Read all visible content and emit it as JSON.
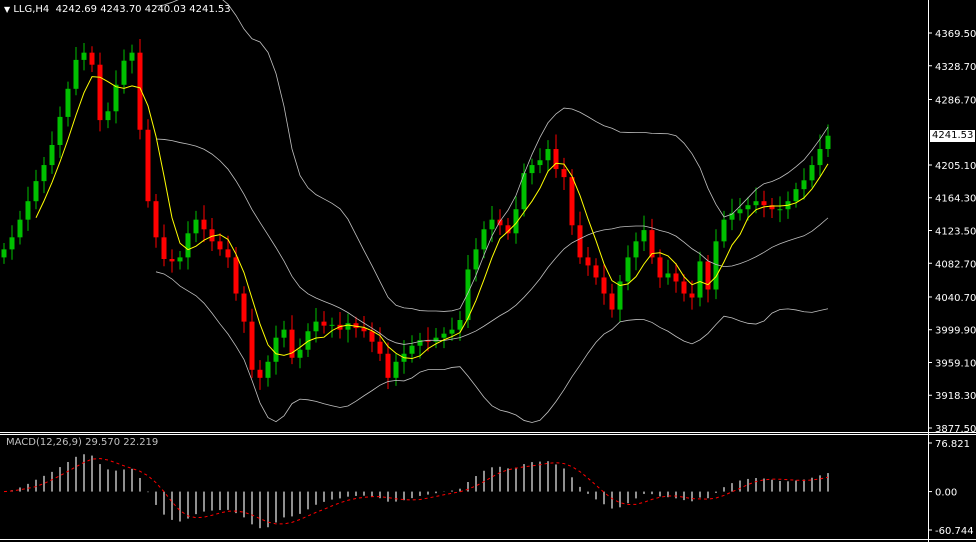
{
  "header": {
    "menu_icon": "triangle-down-icon",
    "symbol": "LLG,H4",
    "ohlc": "4242.69 4243.70 4240.03 4241.53"
  },
  "price_axis": {
    "ticks": [
      "4369.50",
      "4328.70",
      "4286.70",
      "4205.10",
      "4164.30",
      "4123.50",
      "4082.70",
      "4040.70",
      "3999.90",
      "3959.10",
      "3918.30",
      "3877.50"
    ],
    "range": [
      3877.5,
      4369.5
    ],
    "current_price": "4241.53"
  },
  "macd": {
    "label": "MACD(12,26,9) 29.570 22.219",
    "ticks": [
      "76.821",
      "0.00",
      "-60.744"
    ],
    "range": [
      -60.744,
      76.821
    ]
  },
  "colors": {
    "background": "#000000",
    "bull": "#00c000",
    "bear": "#ff0000",
    "ma": "#ffff00",
    "bands": "#c0c0c0",
    "histogram": "#c0c0c0",
    "signal": "#ff0000",
    "axis": "#ffffff"
  },
  "chart_data": {
    "type": "candlestick",
    "timeframe": "H4",
    "closes": [
      4100,
      4115,
      4137,
      4160,
      4185,
      4205,
      4230,
      4265,
      4300,
      4336,
      4345,
      4330,
      4261,
      4272,
      4305,
      4335,
      4345,
      4249,
      4160,
      4115,
      4088,
      4085,
      4090,
      4120,
      4137,
      4125,
      4110,
      4100,
      4090,
      4045,
      4010,
      3950,
      3940,
      3960,
      3990,
      4000,
      3965,
      3975,
      3998,
      4010,
      4005,
      4006,
      4000,
      4008,
      4002,
      3998,
      3985,
      3970,
      3940,
      3960,
      3970,
      3980,
      3987,
      3985,
      3990,
      3995,
      4000,
      4012,
      4075,
      4100,
      4125,
      4137,
      4130,
      4120,
      4150,
      4195,
      4205,
      4211,
      4225,
      4200,
      4190,
      4130,
      4090,
      4080,
      4065,
      4045,
      4025,
      4060,
      4090,
      4110,
      4124,
      4090,
      4065,
      4070,
      4060,
      4045,
      4040,
      4085,
      4050,
      4110,
      4137,
      4145,
      4150,
      4155,
      4160,
      4155,
      4150,
      4150,
      4160,
      4175,
      4186,
      4205,
      4225,
      4241.53
    ]
  }
}
